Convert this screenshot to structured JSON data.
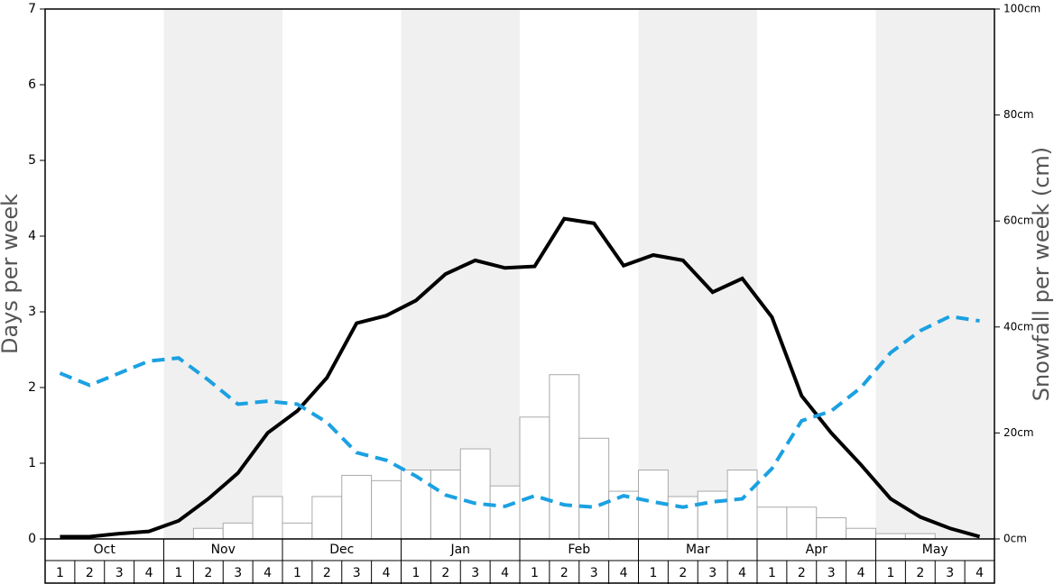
{
  "chart_data": {
    "type": "bar",
    "y_label": "Days per week",
    "y2_label": "Snowfall per week (cm)",
    "months": [
      "Oct",
      "Nov",
      "Dec",
      "Jan",
      "Feb",
      "Mar",
      "Apr",
      "May"
    ],
    "categories": [
      "1",
      "2",
      "3",
      "4",
      "1",
      "2",
      "3",
      "4",
      "1",
      "2",
      "3",
      "4",
      "1",
      "2",
      "3",
      "4",
      "1",
      "2",
      "3",
      "4",
      "1",
      "2",
      "3",
      "4",
      "1",
      "2",
      "3",
      "4",
      "1",
      "2",
      "3",
      "4"
    ],
    "ylim": [
      0,
      7
    ],
    "yticks": [
      0,
      1,
      2,
      3,
      4,
      5,
      6,
      7
    ],
    "y2lim": [
      0,
      100
    ],
    "y2ticks": [
      {
        "value": 0,
        "label": "0cm"
      },
      {
        "value": 20,
        "label": "20cm"
      },
      {
        "value": 40,
        "label": "40cm"
      },
      {
        "value": 60,
        "label": "60cm"
      },
      {
        "value": 80,
        "label": "80cm"
      },
      {
        "value": 100,
        "label": "100cm"
      }
    ],
    "series": [
      {
        "type": "bar",
        "axis": "y2",
        "color": "#ffffff",
        "values": [
          0,
          0,
          0,
          0,
          0,
          2,
          3,
          8,
          3,
          8,
          12,
          11,
          13,
          13,
          17,
          10,
          23,
          31,
          19,
          9,
          13,
          8,
          9,
          13,
          6,
          6,
          4,
          2,
          1,
          1,
          0,
          0
        ]
      },
      {
        "type": "line",
        "color": "#000000",
        "values": [
          0.03,
          0.03,
          0.07,
          0.1,
          0.24,
          0.53,
          0.87,
          1.4,
          1.69,
          2.13,
          2.85,
          2.95,
          3.15,
          3.5,
          3.68,
          3.58,
          3.6,
          4.23,
          4.17,
          3.61,
          3.75,
          3.68,
          3.26,
          3.44,
          2.93,
          1.89,
          1.4,
          0.98,
          0.53,
          0.29,
          0.14,
          0.03
        ]
      },
      {
        "type": "line",
        "dashed": true,
        "color": "#1ba1e2",
        "values": [
          2.19,
          2.03,
          2.19,
          2.35,
          2.39,
          2.1,
          1.78,
          1.82,
          1.78,
          1.54,
          1.14,
          1.04,
          0.83,
          0.58,
          0.47,
          0.43,
          0.57,
          0.45,
          0.42,
          0.57,
          0.49,
          0.42,
          0.49,
          0.53,
          0.93,
          1.56,
          1.69,
          2.0,
          2.46,
          2.75,
          2.94,
          2.88
        ]
      }
    ]
  }
}
